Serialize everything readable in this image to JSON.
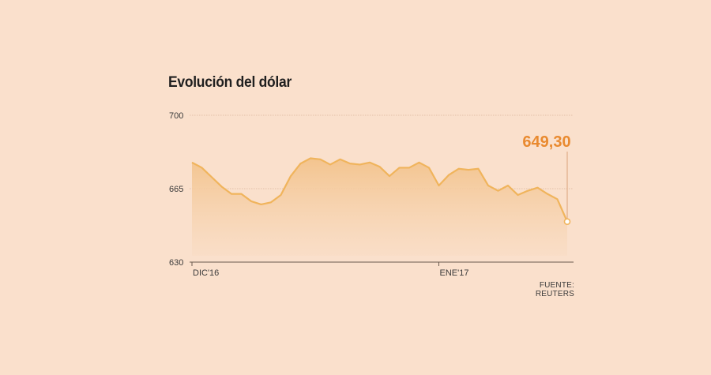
{
  "colors": {
    "background": "#fae0cc",
    "line": "#f0b45c",
    "area_top": "#f3c48e",
    "area_bottom": "#f9dcc4",
    "accent": "#e98a2f",
    "gridline": "#d9b79c",
    "text": "#1f1f1f"
  },
  "chart_data": {
    "type": "area",
    "title": "Evolución del dólar",
    "source": "FUENTE: REUTERS",
    "xlabel": "",
    "ylabel": "",
    "ylim": [
      630,
      700
    ],
    "y_ticks": [
      "700",
      "665",
      "630"
    ],
    "y_tick_values": [
      700,
      665,
      630
    ],
    "x_tick_labels": [
      "DIC'16",
      "ENE'17"
    ],
    "x_tick_indices": [
      0,
      25
    ],
    "grid": true,
    "legend": "none",
    "last_value_label": "649,30",
    "series": [
      {
        "values": [
          677.5,
          675.0,
          670.5,
          666.0,
          662.5,
          662.5,
          659.0,
          657.5,
          658.5,
          662.0,
          671.0,
          677.0,
          679.5,
          679.0,
          676.5,
          679.0,
          677.0,
          676.5,
          677.5,
          675.5,
          671.0,
          675.0,
          675.0,
          677.5,
          675.0,
          666.5,
          671.5,
          674.5,
          674.0,
          674.5,
          666.5,
          664.0,
          666.5,
          662.0,
          664.0,
          665.5,
          662.5,
          660.0,
          649.3
        ]
      }
    ]
  }
}
